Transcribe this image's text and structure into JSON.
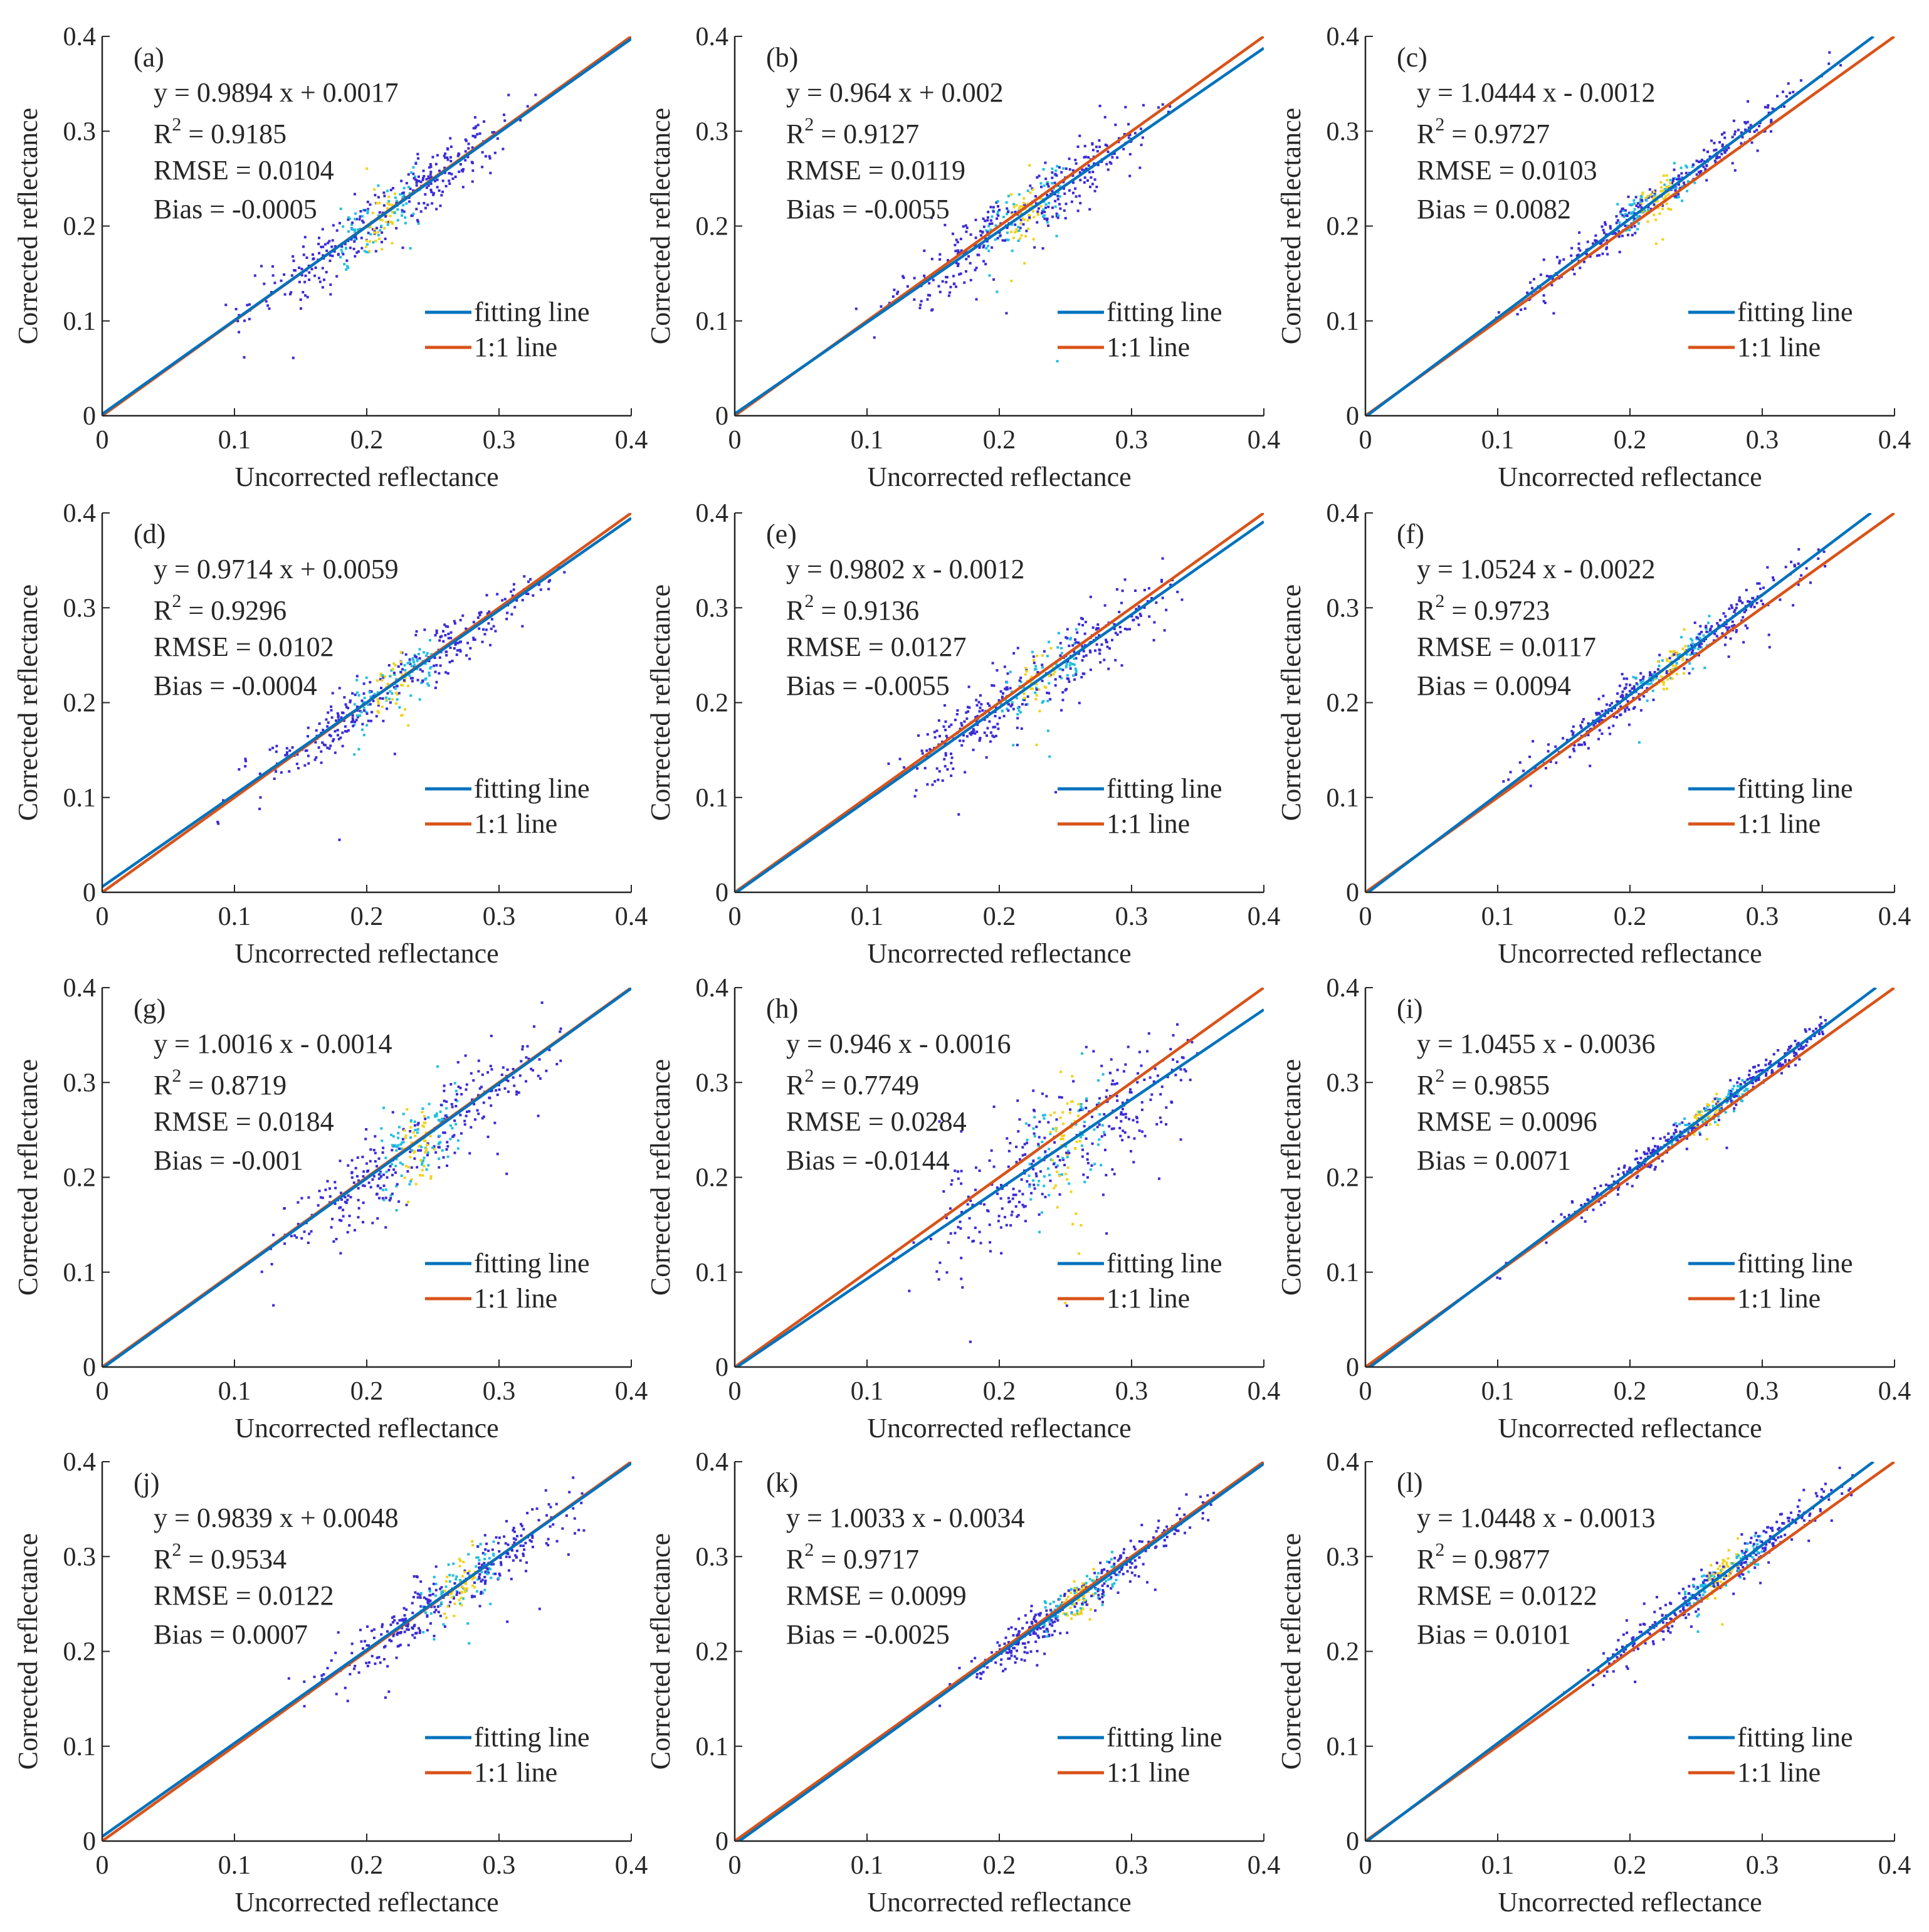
{
  "figure": {
    "colors": {
      "fit_line": "#0072BD",
      "one_to_one_line": "#D95319",
      "axis": "#262626",
      "scatter_low": "#3b2bd6",
      "scatter_mid": "#22c0e0",
      "scatter_high": "#f2d21b"
    }
  },
  "chart_data": [
    {
      "panel_label": "(a)",
      "type": "scatter",
      "xlabel": "Uncorrected reflectance",
      "ylabel": "Corrected reflectance",
      "xlim": [
        0,
        0.4
      ],
      "ylim": [
        0,
        0.4
      ],
      "x_ticks": [
        "0",
        "0.1",
        "0.2",
        "0.3",
        "0.4"
      ],
      "y_ticks": [
        "0",
        "0.1",
        "0.2",
        "0.3",
        "0.4"
      ],
      "fit": {
        "slope": 0.9894,
        "intercept": 0.0017
      },
      "stats": {
        "equation": "y = 0.9894 x + 0.0017",
        "r2_prefix": "R",
        "r2_sup": "2",
        "r2_value": " = 0.9185",
        "rmse": "RMSE = 0.0104",
        "bias": "Bias = -0.0005"
      },
      "legend": [
        "fitting line",
        "1:1 line"
      ],
      "scatter_range": [
        0.09,
        0.34
      ],
      "scatter_spread": 0.016,
      "density_center": 0.21
    },
    {
      "panel_label": "(b)",
      "type": "scatter",
      "xlabel": "Uncorrected reflectance",
      "ylabel": "Corrected reflectance",
      "xlim": [
        0,
        0.4
      ],
      "ylim": [
        0,
        0.4
      ],
      "x_ticks": [
        "0",
        "0.1",
        "0.2",
        "0.3",
        "0.4"
      ],
      "y_ticks": [
        "0",
        "0.1",
        "0.2",
        "0.3",
        "0.4"
      ],
      "fit": {
        "slope": 0.964,
        "intercept": 0.002
      },
      "stats": {
        "equation": "y = 0.964 x + 0.002",
        "r2_prefix": "R",
        "r2_sup": "2",
        "r2_value": " = 0.9127",
        "rmse": "RMSE = 0.0119",
        "bias": "Bias = -0.0055"
      },
      "legend": [
        "fitting line",
        "1:1 line"
      ],
      "scatter_range": [
        0.09,
        0.33
      ],
      "scatter_spread": 0.018,
      "density_center": 0.22
    },
    {
      "panel_label": "(c)",
      "type": "scatter",
      "xlabel": "Uncorrected reflectance",
      "ylabel": "Corrected reflectance",
      "xlim": [
        0,
        0.4
      ],
      "ylim": [
        0,
        0.4
      ],
      "x_ticks": [
        "0",
        "0.1",
        "0.2",
        "0.3",
        "0.4"
      ],
      "y_ticks": [
        "0",
        "0.1",
        "0.2",
        "0.3",
        "0.4"
      ],
      "fit": {
        "slope": 1.0444,
        "intercept": -0.0012
      },
      "stats": {
        "equation": "y = 1.0444 x - 0.0012",
        "r2_prefix": "R",
        "r2_sup": "2",
        "r2_value": " = 0.9727",
        "rmse": "RMSE = 0.0103",
        "bias": "Bias = 0.0082"
      },
      "legend": [
        "fitting line",
        "1:1 line"
      ],
      "scatter_range": [
        0.09,
        0.36
      ],
      "scatter_spread": 0.009,
      "density_center": 0.22
    },
    {
      "panel_label": "(d)",
      "type": "scatter",
      "xlabel": "Uncorrected reflectance",
      "ylabel": "Corrected reflectance",
      "xlim": [
        0,
        0.4
      ],
      "ylim": [
        0,
        0.4
      ],
      "x_ticks": [
        "0",
        "0.1",
        "0.2",
        "0.3",
        "0.4"
      ],
      "y_ticks": [
        "0",
        "0.1",
        "0.2",
        "0.3",
        "0.4"
      ],
      "fit": {
        "slope": 0.9714,
        "intercept": 0.0059
      },
      "stats": {
        "equation": "y = 0.9714 x + 0.0059",
        "r2_prefix": "R",
        "r2_sup": "2",
        "r2_value": " = 0.9296",
        "rmse": "RMSE = 0.0102",
        "bias": "Bias = -0.0004"
      },
      "legend": [
        "fitting line",
        "1:1 line"
      ],
      "scatter_range": [
        0.08,
        0.36
      ],
      "scatter_spread": 0.014,
      "density_center": 0.22
    },
    {
      "panel_label": "(e)",
      "type": "scatter",
      "xlabel": "Uncorrected reflectance",
      "ylabel": "Corrected reflectance",
      "xlim": [
        0,
        0.4
      ],
      "ylim": [
        0,
        0.4
      ],
      "x_ticks": [
        "0",
        "0.1",
        "0.2",
        "0.3",
        "0.4"
      ],
      "y_ticks": [
        "0",
        "0.1",
        "0.2",
        "0.3",
        "0.4"
      ],
      "fit": {
        "slope": 0.9802,
        "intercept": -0.0012
      },
      "stats": {
        "equation": "y = 0.9802 x - 0.0012",
        "r2_prefix": "R",
        "r2_sup": "2",
        "r2_value": " = 0.9136",
        "rmse": "RMSE = 0.0127",
        "bias": "Bias = -0.0055"
      },
      "legend": [
        "fitting line",
        "1:1 line"
      ],
      "scatter_range": [
        0.09,
        0.34
      ],
      "scatter_spread": 0.018,
      "density_center": 0.23
    },
    {
      "panel_label": "(f)",
      "type": "scatter",
      "xlabel": "Uncorrected reflectance",
      "ylabel": "Corrected reflectance",
      "xlim": [
        0,
        0.4
      ],
      "ylim": [
        0,
        0.4
      ],
      "x_ticks": [
        "0",
        "0.1",
        "0.2",
        "0.3",
        "0.4"
      ],
      "y_ticks": [
        "0",
        "0.1",
        "0.2",
        "0.3",
        "0.4"
      ],
      "fit": {
        "slope": 1.0524,
        "intercept": -0.0022
      },
      "stats": {
        "equation": "y = 1.0524 x - 0.0022",
        "r2_prefix": "R",
        "r2_sup": "2",
        "r2_value": " = 0.9723",
        "rmse": "RMSE = 0.0117",
        "bias": "Bias = 0.0094"
      },
      "legend": [
        "fitting line",
        "1:1 line"
      ],
      "scatter_range": [
        0.09,
        0.35
      ],
      "scatter_spread": 0.01,
      "density_center": 0.23
    },
    {
      "panel_label": "(g)",
      "type": "scatter",
      "xlabel": "Uncorrected reflectance",
      "ylabel": "Corrected reflectance",
      "xlim": [
        0,
        0.4
      ],
      "ylim": [
        0,
        0.4
      ],
      "x_ticks": [
        "0",
        "0.1",
        "0.2",
        "0.3",
        "0.4"
      ],
      "y_ticks": [
        "0",
        "0.1",
        "0.2",
        "0.3",
        "0.4"
      ],
      "fit": {
        "slope": 1.0016,
        "intercept": -0.0014
      },
      "stats": {
        "equation": "y = 1.0016 x - 0.0014",
        "r2_prefix": "R",
        "r2_sup": "2",
        "r2_value": " = 0.8719",
        "rmse": "RMSE = 0.0184",
        "bias": "Bias = -0.001"
      },
      "legend": [
        "fitting line",
        "1:1 line"
      ],
      "scatter_range": [
        0.1,
        0.35
      ],
      "scatter_spread": 0.022,
      "density_center": 0.24
    },
    {
      "panel_label": "(h)",
      "type": "scatter",
      "xlabel": "Uncorrected reflectance",
      "ylabel": "Corrected reflectance",
      "xlim": [
        0,
        0.4
      ],
      "ylim": [
        0,
        0.4
      ],
      "x_ticks": [
        "0",
        "0.1",
        "0.2",
        "0.3",
        "0.4"
      ],
      "y_ticks": [
        "0",
        "0.1",
        "0.2",
        "0.3",
        "0.4"
      ],
      "fit": {
        "slope": 0.946,
        "intercept": -0.0016
      },
      "stats": {
        "equation": "y = 0.946 x - 0.0016",
        "r2_prefix": "R",
        "r2_sup": "2",
        "r2_value": " = 0.7749",
        "rmse": "RMSE = 0.0284",
        "bias": "Bias = -0.0144"
      },
      "legend": [
        "fitting line",
        "1:1 line"
      ],
      "scatter_range": [
        0.1,
        0.35
      ],
      "scatter_spread": 0.032,
      "density_center": 0.25
    },
    {
      "panel_label": "(i)",
      "type": "scatter",
      "xlabel": "Uncorrected reflectance",
      "ylabel": "Corrected reflectance",
      "xlim": [
        0,
        0.4
      ],
      "ylim": [
        0,
        0.4
      ],
      "x_ticks": [
        "0",
        "0.1",
        "0.2",
        "0.3",
        "0.4"
      ],
      "y_ticks": [
        "0",
        "0.1",
        "0.2",
        "0.3",
        "0.4"
      ],
      "fit": {
        "slope": 1.0455,
        "intercept": -0.0036
      },
      "stats": {
        "equation": "y = 1.0455 x - 0.0036",
        "r2_prefix": "R",
        "r2_sup": "2",
        "r2_value": " = 0.9855",
        "rmse": "RMSE = 0.0096",
        "bias": "Bias = 0.0071"
      },
      "legend": [
        "fitting line",
        "1:1 line"
      ],
      "scatter_range": [
        0.09,
        0.35
      ],
      "scatter_spread": 0.007,
      "density_center": 0.26
    },
    {
      "panel_label": "(j)",
      "type": "scatter",
      "xlabel": "Uncorrected reflectance",
      "ylabel": "Corrected reflectance",
      "xlim": [
        0,
        0.4
      ],
      "ylim": [
        0,
        0.4
      ],
      "x_ticks": [
        "0",
        "0.1",
        "0.2",
        "0.3",
        "0.4"
      ],
      "y_ticks": [
        "0",
        "0.1",
        "0.2",
        "0.3",
        "0.4"
      ],
      "fit": {
        "slope": 0.9839,
        "intercept": 0.0048
      },
      "stats": {
        "equation": "y = 0.9839 x + 0.0048",
        "r2_prefix": "R",
        "r2_sup": "2",
        "r2_value": " = 0.9534",
        "rmse": "RMSE = 0.0122",
        "bias": "Bias = 0.0007"
      },
      "legend": [
        "fitting line",
        "1:1 line"
      ],
      "scatter_range": [
        0.14,
        0.37
      ],
      "scatter_spread": 0.014,
      "density_center": 0.27
    },
    {
      "panel_label": "(k)",
      "type": "scatter",
      "xlabel": "Uncorrected reflectance",
      "ylabel": "Corrected reflectance",
      "xlim": [
        0,
        0.4
      ],
      "ylim": [
        0,
        0.4
      ],
      "x_ticks": [
        "0",
        "0.1",
        "0.2",
        "0.3",
        "0.4"
      ],
      "y_ticks": [
        "0",
        "0.1",
        "0.2",
        "0.3",
        "0.4"
      ],
      "fit": {
        "slope": 1.0033,
        "intercept": -0.0034
      },
      "stats": {
        "equation": "y = 1.0033 x - 0.0034",
        "r2_prefix": "R",
        "r2_sup": "2",
        "r2_value": " = 0.9717",
        "rmse": "RMSE = 0.0099",
        "bias": "Bias = -0.0025"
      },
      "legend": [
        "fitting line",
        "1:1 line"
      ],
      "scatter_range": [
        0.15,
        0.37
      ],
      "scatter_spread": 0.011,
      "density_center": 0.26
    },
    {
      "panel_label": "(l)",
      "type": "scatter",
      "xlabel": "Uncorrected reflectance",
      "ylabel": "Corrected reflectance",
      "xlim": [
        0,
        0.4
      ],
      "ylim": [
        0,
        0.4
      ],
      "x_ticks": [
        "0",
        "0.1",
        "0.2",
        "0.3",
        "0.4"
      ],
      "y_ticks": [
        "0",
        "0.1",
        "0.2",
        "0.3",
        "0.4"
      ],
      "fit": {
        "slope": 1.0448,
        "intercept": -0.0013
      },
      "stats": {
        "equation": "y = 1.0448 x - 0.0013",
        "r2_prefix": "R",
        "r2_sup": "2",
        "r2_value": " = 0.9877",
        "rmse": "RMSE = 0.0122",
        "bias": "Bias = 0.0101"
      },
      "legend": [
        "fitting line",
        "1:1 line"
      ],
      "scatter_range": [
        0.14,
        0.37
      ],
      "scatter_spread": 0.01,
      "density_center": 0.27
    }
  ]
}
